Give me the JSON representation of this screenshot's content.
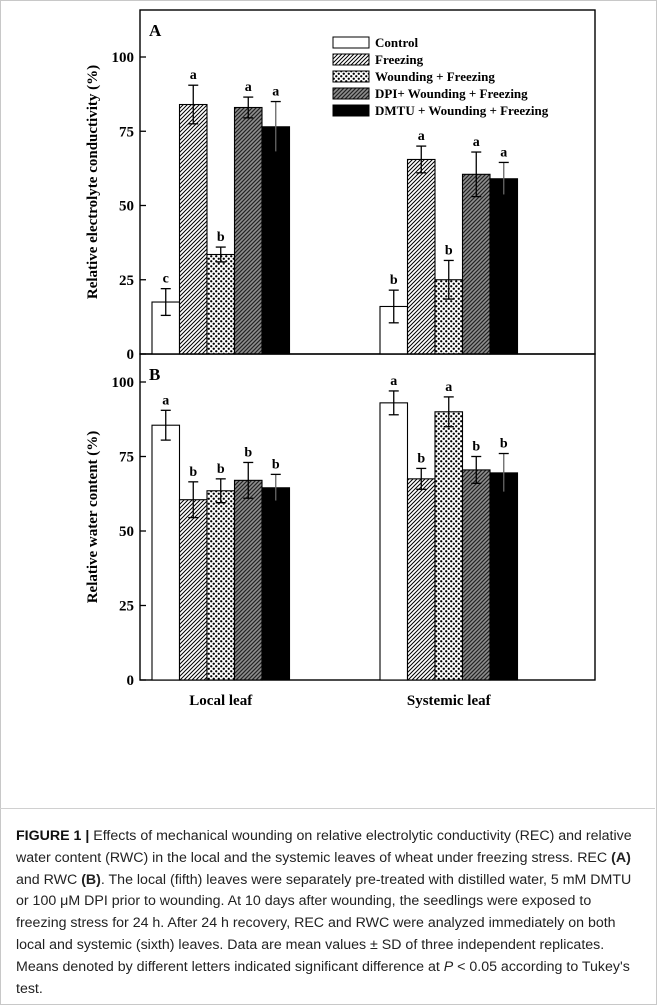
{
  "chart_data": [
    {
      "panel": "A",
      "type": "bar",
      "ylabel": "Relative electrolyte conductivity (%)",
      "ylim": [
        0,
        100
      ],
      "yticks": [
        0,
        25,
        50,
        75,
        100
      ],
      "categories": [
        "Local leaf",
        "Systemic leaf"
      ],
      "series": [
        {
          "name": "Control",
          "values": [
            17.5,
            16
          ],
          "sd": [
            4.5,
            5.5
          ],
          "letters": [
            "c",
            "b"
          ]
        },
        {
          "name": "Freezing",
          "values": [
            84,
            65.5
          ],
          "sd": [
            6.5,
            4.5
          ],
          "letters": [
            "a",
            "a"
          ]
        },
        {
          "name": "Wounding + Freezing",
          "values": [
            33.5,
            25
          ],
          "sd": [
            2.5,
            6.5
          ],
          "letters": [
            "b",
            "b"
          ]
        },
        {
          "name": "DPI+ Wounding + Freezing",
          "values": [
            83,
            60.5
          ],
          "sd": [
            3.5,
            7.5
          ],
          "letters": [
            "a",
            "a"
          ]
        },
        {
          "name": "DMTU + Wounding + Freezing",
          "values": [
            76.5,
            59
          ],
          "sd": [
            8.5,
            5.5
          ],
          "letters": [
            "a",
            "a"
          ]
        }
      ],
      "legend_position": "top-right"
    },
    {
      "panel": "B",
      "type": "bar",
      "ylabel": "Relative water content (%)",
      "ylim": [
        0,
        100
      ],
      "yticks": [
        0,
        25,
        50,
        75,
        100
      ],
      "categories": [
        "Local leaf",
        "Systemic leaf"
      ],
      "series": [
        {
          "name": "Control",
          "values": [
            85.5,
            93
          ],
          "sd": [
            5,
            4
          ],
          "letters": [
            "a",
            "a"
          ]
        },
        {
          "name": "Freezing",
          "values": [
            60.5,
            67.5
          ],
          "sd": [
            6,
            3.5
          ],
          "letters": [
            "b",
            "b"
          ]
        },
        {
          "name": "Wounding + Freezing",
          "values": [
            63.5,
            90
          ],
          "sd": [
            4,
            5
          ],
          "letters": [
            "b",
            "a"
          ]
        },
        {
          "name": "DPI+ Wounding + Freezing",
          "values": [
            67,
            70.5
          ],
          "sd": [
            6,
            4.5
          ],
          "letters": [
            "b",
            "b"
          ]
        },
        {
          "name": "DMTU + Wounding + Freezing",
          "values": [
            64.5,
            69.5
          ],
          "sd": [
            4.5,
            6.5
          ],
          "letters": [
            "b",
            "b"
          ]
        }
      ]
    }
  ],
  "caption": {
    "label": "FIGURE 1 |",
    "text1": " Effects of mechanical wounding on relative electrolytic conductivity (REC) and relative water content (RWC) in the local and the systemic leaves of wheat under freezing stress. REC ",
    "ref_a": "(A)",
    "text2": " and RWC ",
    "ref_b": "(B)",
    "text3": ". The local (fifth) leaves were separately pre-treated with distilled water, 5 mM DMTU or 100 μM DPI prior to wounding. At 10 days after wounding, the seedlings were exposed to freezing stress for 24 h. After 24 h recovery, REC and RWC were analyzed immediately on both local and systemic (sixth) leaves. Data are mean values ± SD of three independent replicates. Means denoted by different letters indicated significant difference at ",
    "p_italic": "P",
    "text4": " < 0.05 according to Tukey's test."
  }
}
